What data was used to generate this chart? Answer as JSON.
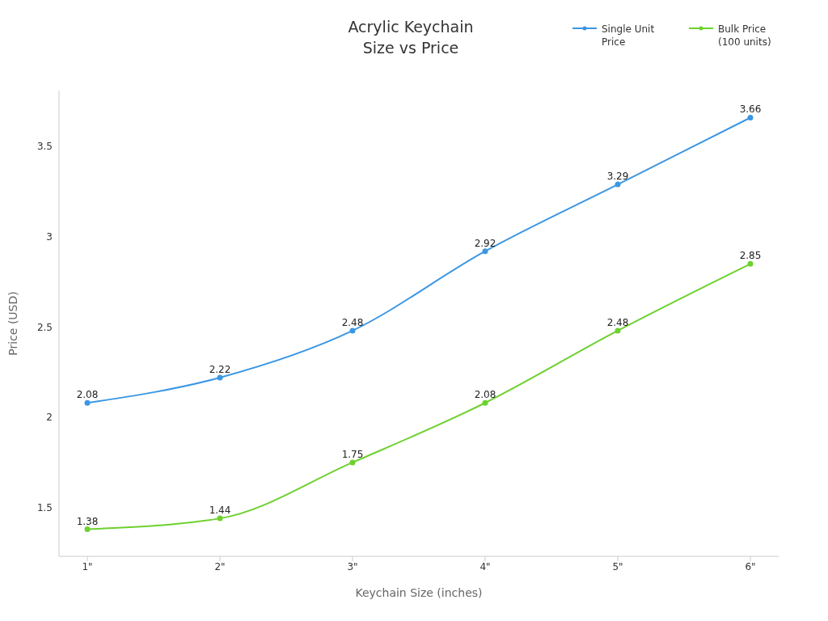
{
  "chart_data": {
    "type": "line",
    "title": "Acrylic Keychain\nSize vs Price",
    "xlabel": "Keychain Size (inches)",
    "ylabel": "Price (USD)",
    "categories": [
      "1\"",
      "2\"",
      "3\"",
      "4\"",
      "5\"",
      "6\""
    ],
    "series": [
      {
        "name": "Single Unit Price",
        "color": "#3b97e3",
        "values": [
          2.08,
          2.22,
          2.48,
          2.92,
          3.29,
          3.66
        ]
      },
      {
        "name": "Bulk Price (100 units)",
        "color": "#6dd12e",
        "values": [
          1.38,
          1.44,
          1.75,
          2.08,
          2.48,
          2.85
        ]
      }
    ],
    "ylim": [
      1.23,
      3.81
    ],
    "yticks": [
      1.5,
      2,
      2.5,
      3,
      3.5
    ],
    "legend": "top right",
    "marker": "circle",
    "line_style": "solid",
    "data_labels": true
  }
}
